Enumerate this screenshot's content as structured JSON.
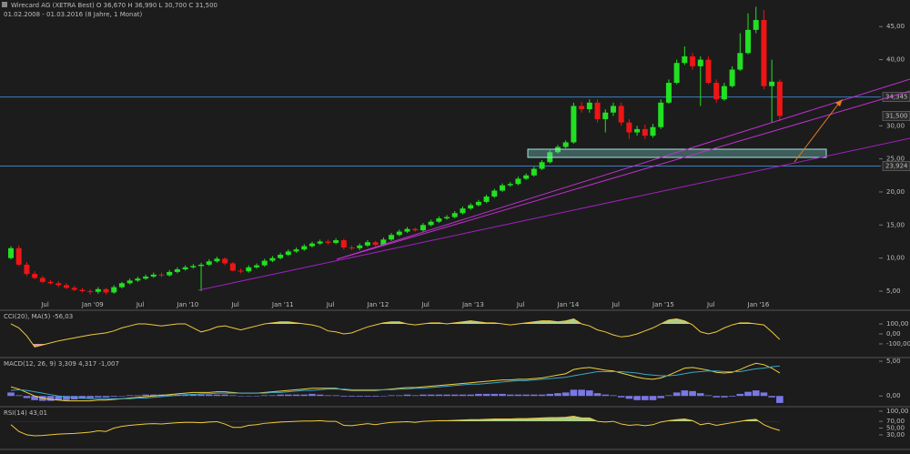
{
  "chart_data": {
    "type": "candlestick",
    "title": "Wirecard AG (XETRA Best) O 36,670 H 36,990 L 30,700 C 31,500",
    "subtitle": "01.02.2008 - 01.03.2016 (8 Jahre, 1 Monat)",
    "categories": [
      null,
      null,
      null,
      null,
      null,
      "Jul",
      null,
      null,
      null,
      null,
      null,
      "Jan '09",
      null,
      null,
      null,
      null,
      null,
      "Jul",
      null,
      null,
      null,
      null,
      null,
      "Jan '10",
      null,
      null,
      null,
      null,
      null,
      "Jul",
      null,
      null,
      null,
      null,
      null,
      "Jan '11",
      null,
      null,
      null,
      null,
      null,
      "Jul",
      null,
      null,
      null,
      null,
      null,
      "Jan '12",
      null,
      null,
      null,
      null,
      null,
      "Jul",
      null,
      null,
      null,
      null,
      null,
      "Jan '13",
      null,
      null,
      null,
      null,
      null,
      "Jul",
      null,
      null,
      null,
      null,
      null,
      "Jan '14",
      null,
      null,
      null,
      null,
      null,
      "Jul",
      null,
      null,
      null,
      null,
      null,
      "Jan '15",
      null,
      null,
      null,
      null,
      null,
      "Jul",
      null,
      null,
      null,
      null,
      null,
      "Jan '16",
      null,
      null
    ],
    "open": [
      10.0,
      11.5,
      9.0,
      7.6,
      7.0,
      6.4,
      6.2,
      5.9,
      5.5,
      5.2,
      5.0,
      4.9,
      5.3,
      4.8,
      5.6,
      6.2,
      6.6,
      6.9,
      7.2,
      7.5,
      7.4,
      7.9,
      8.3,
      8.6,
      8.8,
      9.0,
      9.5,
      9.9,
      9.2,
      8.1,
      8.0,
      8.6,
      8.9,
      9.6,
      10.0,
      10.5,
      11.0,
      11.3,
      11.8,
      12.2,
      12.5,
      12.3,
      12.7,
      11.6,
      11.5,
      11.9,
      12.4,
      12.0,
      12.8,
      13.5,
      14.0,
      14.4,
      14.2,
      15.0,
      15.5,
      16.0,
      16.2,
      16.8,
      17.5,
      18.0,
      18.5,
      19.3,
      20.2,
      21.0,
      21.2,
      22.0,
      22.5,
      23.5,
      24.5,
      26.0,
      26.8,
      27.5,
      33.0,
      32.5,
      33.5,
      31.0,
      32.0,
      33.0,
      30.5,
      29.0,
      29.5,
      28.5,
      29.8,
      33.5,
      36.5,
      39.5,
      40.5,
      39.0,
      40.0,
      36.5,
      34.0,
      36.0,
      38.5,
      41.0,
      44.5,
      46.0,
      36.0,
      36.67
    ],
    "high": [
      11.8,
      11.9,
      9.4,
      8.0,
      7.3,
      6.7,
      6.5,
      6.2,
      5.8,
      5.5,
      5.3,
      5.6,
      5.5,
      5.9,
      6.4,
      6.9,
      7.2,
      7.5,
      7.8,
      7.8,
      8.2,
      8.6,
      8.9,
      9.1,
      9.3,
      9.8,
      10.2,
      10.1,
      9.4,
      8.4,
      8.9,
      9.2,
      9.9,
      10.3,
      10.8,
      11.3,
      11.6,
      12.1,
      12.5,
      12.8,
      12.8,
      13.0,
      12.9,
      11.9,
      12.2,
      12.7,
      12.6,
      13.1,
      13.8,
      14.3,
      14.7,
      14.6,
      15.3,
      15.8,
      16.3,
      16.5,
      17.1,
      17.8,
      18.3,
      18.8,
      19.6,
      20.5,
      21.3,
      21.5,
      22.3,
      22.8,
      23.8,
      24.8,
      26.3,
      27.1,
      27.8,
      33.5,
      33.6,
      34.0,
      34.0,
      32.5,
      33.5,
      33.5,
      31.0,
      30.0,
      30.2,
      30.3,
      34.0,
      37.0,
      40.0,
      42.0,
      41.0,
      40.5,
      40.5,
      37.0,
      36.5,
      39.0,
      44.0,
      47.0,
      48.0,
      47.5,
      40.0,
      36.99
    ],
    "low": [
      9.8,
      8.8,
      7.3,
      6.8,
      6.2,
      6.0,
      5.6,
      5.3,
      5.0,
      4.8,
      4.5,
      4.6,
      4.5,
      4.6,
      5.4,
      6.0,
      6.4,
      6.7,
      7.0,
      7.1,
      7.2,
      7.7,
      8.1,
      8.4,
      5.0,
      8.8,
      9.3,
      8.9,
      8.0,
      7.7,
      7.8,
      8.4,
      8.7,
      9.4,
      9.8,
      10.3,
      10.8,
      11.1,
      11.6,
      12.0,
      12.0,
      12.1,
      11.3,
      11.2,
      11.2,
      11.7,
      11.8,
      11.8,
      12.6,
      13.3,
      13.8,
      14.0,
      14.0,
      14.8,
      15.3,
      15.8,
      16.0,
      16.6,
      17.3,
      17.8,
      18.3,
      19.1,
      20.0,
      20.8,
      21.0,
      21.8,
      22.3,
      23.3,
      24.3,
      25.8,
      26.6,
      27.3,
      32.0,
      32.0,
      30.5,
      29.0,
      31.5,
      30.0,
      28.0,
      28.5,
      28.0,
      28.2,
      29.5,
      33.3,
      36.3,
      39.2,
      38.5,
      33.0,
      36.3,
      33.5,
      33.8,
      35.8,
      38.3,
      40.8,
      44.0,
      35.5,
      30.5,
      30.7
    ],
    "close": [
      11.5,
      9.0,
      7.6,
      7.0,
      6.4,
      6.2,
      5.9,
      5.5,
      5.2,
      5.0,
      4.9,
      5.3,
      4.8,
      5.6,
      6.2,
      6.6,
      6.9,
      7.2,
      7.5,
      7.4,
      7.9,
      8.3,
      8.6,
      8.8,
      9.0,
      9.5,
      9.9,
      9.2,
      8.1,
      8.0,
      8.6,
      8.9,
      9.6,
      10.0,
      10.5,
      11.0,
      11.3,
      11.8,
      12.2,
      12.5,
      12.3,
      12.7,
      11.6,
      11.5,
      11.9,
      12.4,
      12.0,
      12.8,
      13.5,
      14.0,
      14.4,
      14.2,
      15.0,
      15.5,
      16.0,
      16.2,
      16.8,
      17.5,
      18.0,
      18.5,
      19.3,
      20.2,
      21.0,
      21.2,
      22.0,
      22.5,
      23.5,
      24.5,
      26.0,
      26.8,
      27.5,
      33.0,
      32.5,
      33.5,
      31.0,
      32.0,
      33.0,
      30.5,
      29.0,
      29.5,
      28.5,
      29.8,
      33.5,
      36.5,
      39.5,
      40.5,
      39.0,
      40.0,
      36.5,
      34.0,
      36.0,
      38.5,
      41.0,
      44.5,
      46.0,
      36.0,
      36.67,
      31.5
    ],
    "up_color": "#22e022",
    "down_color": "#ee1515",
    "ylim": [
      2.25,
      49.02
    ],
    "yticks": [
      {
        "value": 5,
        "label": "5,00"
      },
      {
        "value": 10,
        "label": "10,00"
      },
      {
        "value": 15,
        "label": "15,00"
      },
      {
        "value": 20,
        "label": "20,00"
      },
      {
        "value": 25,
        "label": "25,00"
      },
      {
        "value": 30,
        "label": "30,00"
      },
      {
        "value": 40,
        "label": "40,00"
      },
      {
        "value": 45,
        "label": "45,00"
      }
    ],
    "hlines": [
      {
        "value": 34.345,
        "label": "34,345",
        "color": "#3a7fc0"
      },
      {
        "value": 23.924,
        "label": "23,924",
        "color": "#3a7fc0"
      }
    ],
    "last_price": {
      "value": 31.5,
      "label": "31,500"
    },
    "indicators": [
      {
        "type": "line",
        "title": "CCI(20), MA(5) -56,03",
        "ylim": [
          -209,
          218
        ],
        "yticks": [
          {
            "value": 100,
            "label": "100,00"
          },
          {
            "value": 0,
            "label": "0,00"
          },
          {
            "value": -100,
            "label": "-100,00"
          }
        ],
        "fills": [
          {
            "tick": 0,
            "side": "above",
            "color": "#c8ef9c"
          },
          {
            "tick": 2,
            "side": "below",
            "color": "#f2b4b4"
          }
        ],
        "series": [
          {
            "color": "#f0c83c",
            "values": [
              100,
              60,
              -20,
              -130,
              -110,
              -90,
              -70,
              -55,
              -40,
              -25,
              -10,
              0,
              10,
              30,
              60,
              80,
              100,
              100,
              90,
              80,
              90,
              100,
              100,
              60,
              20,
              40,
              70,
              80,
              60,
              40,
              60,
              80,
              100,
              110,
              120,
              120,
              110,
              100,
              90,
              70,
              30,
              20,
              0,
              10,
              40,
              70,
              90,
              110,
              120,
              120,
              100,
              90,
              100,
              110,
              110,
              100,
              110,
              120,
              130,
              120,
              110,
              110,
              100,
              90,
              100,
              110,
              120,
              130,
              130,
              120,
              130,
              150,
              100,
              80,
              40,
              20,
              -10,
              -30,
              -20,
              0,
              30,
              60,
              100,
              140,
              150,
              130,
              90,
              20,
              0,
              20,
              60,
              90,
              110,
              110,
              100,
              90,
              20,
              -56.03
            ]
          }
        ]
      },
      {
        "type": "macd",
        "title": "MACD(12, 26, 9) 3,309 4,317 -1,007",
        "ylim": [
          -1.41,
          5.26
        ],
        "yticks": [
          {
            "value": 5,
            "label": "5,00"
          },
          {
            "value": 0,
            "label": "0,00"
          }
        ],
        "histogram": {
          "color": "#7a78e6",
          "values": [
            0.5,
            0.1,
            -0.3,
            -0.6,
            -0.7,
            -0.7,
            -0.6,
            -0.6,
            -0.5,
            -0.4,
            -0.3,
            -0.2,
            -0.2,
            -0.1,
            0.0,
            0.1,
            0.1,
            0.2,
            0.2,
            0.2,
            0.2,
            0.2,
            0.2,
            0.3,
            0.2,
            0.2,
            0.2,
            0.2,
            0.1,
            0.0,
            0.0,
            0.0,
            0.1,
            0.1,
            0.2,
            0.2,
            0.2,
            0.2,
            0.3,
            0.2,
            0.1,
            0.1,
            -0.1,
            -0.1,
            -0.1,
            -0.1,
            -0.1,
            0.0,
            0.1,
            0.1,
            0.2,
            0.1,
            0.2,
            0.2,
            0.2,
            0.2,
            0.2,
            0.2,
            0.2,
            0.3,
            0.3,
            0.3,
            0.3,
            0.2,
            0.2,
            0.2,
            0.2,
            0.2,
            0.3,
            0.4,
            0.5,
            0.9,
            0.9,
            0.8,
            0.4,
            0.2,
            0.1,
            -0.2,
            -0.4,
            -0.6,
            -0.6,
            -0.6,
            -0.3,
            0.1,
            0.5,
            0.8,
            0.7,
            0.4,
            0.1,
            -0.2,
            -0.2,
            -0.1,
            0.3,
            0.6,
            0.8,
            0.5,
            -0.2,
            -1.007
          ]
        },
        "series": [
          {
            "color": "#f0d040",
            "values": [
              1.3,
              1.0,
              0.5,
              0.0,
              -0.3,
              -0.5,
              -0.6,
              -0.7,
              -0.7,
              -0.7,
              -0.7,
              -0.6,
              -0.6,
              -0.5,
              -0.4,
              -0.3,
              -0.2,
              -0.1,
              0.0,
              0.1,
              0.2,
              0.3,
              0.4,
              0.5,
              0.5,
              0.5,
              0.6,
              0.6,
              0.5,
              0.4,
              0.4,
              0.4,
              0.5,
              0.6,
              0.7,
              0.8,
              0.9,
              1.0,
              1.1,
              1.1,
              1.1,
              1.1,
              0.9,
              0.8,
              0.8,
              0.8,
              0.8,
              0.9,
              1.0,
              1.1,
              1.2,
              1.2,
              1.3,
              1.4,
              1.5,
              1.6,
              1.7,
              1.8,
              1.9,
              2.0,
              2.1,
              2.2,
              2.3,
              2.3,
              2.4,
              2.4,
              2.5,
              2.6,
              2.8,
              3.0,
              3.2,
              3.8,
              4.0,
              4.1,
              3.9,
              3.7,
              3.6,
              3.3,
              3.0,
              2.7,
              2.5,
              2.4,
              2.6,
              3.0,
              3.5,
              4.0,
              4.1,
              3.9,
              3.7,
              3.4,
              3.3,
              3.4,
              3.8,
              4.3,
              4.7,
              4.5,
              4.0,
              3.309
            ]
          },
          {
            "color": "#3aa6c8",
            "values": [
              0.8,
              0.9,
              0.8,
              0.6,
              0.4,
              0.2,
              0.0,
              -0.1,
              -0.2,
              -0.3,
              -0.4,
              -0.4,
              -0.4,
              -0.4,
              -0.4,
              -0.4,
              -0.3,
              -0.3,
              -0.2,
              -0.1,
              0.0,
              0.1,
              0.2,
              0.2,
              0.3,
              0.3,
              0.4,
              0.4,
              0.4,
              0.4,
              0.4,
              0.4,
              0.4,
              0.5,
              0.5,
              0.6,
              0.7,
              0.8,
              0.8,
              0.9,
              1.0,
              1.0,
              1.0,
              0.9,
              0.9,
              0.9,
              0.9,
              0.9,
              0.9,
              1.0,
              1.0,
              1.1,
              1.1,
              1.2,
              1.3,
              1.4,
              1.5,
              1.6,
              1.7,
              1.7,
              1.8,
              1.9,
              2.0,
              2.1,
              2.2,
              2.2,
              2.3,
              2.4,
              2.5,
              2.6,
              2.7,
              2.9,
              3.1,
              3.3,
              3.5,
              3.5,
              3.5,
              3.5,
              3.4,
              3.3,
              3.1,
              3.0,
              2.9,
              2.9,
              3.0,
              3.2,
              3.4,
              3.5,
              3.6,
              3.6,
              3.5,
              3.5,
              3.5,
              3.7,
              3.9,
              4.0,
              4.2,
              4.317
            ]
          }
        ]
      },
      {
        "type": "line",
        "title": "RSI(14) 43,01",
        "ylim": [
          -8,
          108
        ],
        "yticks": [
          {
            "value": 100,
            "label": "100,00"
          },
          {
            "value": 70,
            "label": "70,00"
          },
          {
            "value": 50,
            "label": "50,00"
          },
          {
            "value": 30,
            "label": "30,00"
          }
        ],
        "fills": [
          {
            "tick": 1,
            "side": "above",
            "color": "#c8ef9c"
          }
        ],
        "series": [
          {
            "color": "#f0c83c",
            "values": [
              60,
              40,
              30,
              27,
              28,
              30,
              32,
              33,
              34,
              36,
              38,
              42,
              40,
              50,
              55,
              58,
              60,
              62,
              63,
              62,
              64,
              66,
              67,
              67,
              66,
              68,
              69,
              62,
              52,
              52,
              58,
              60,
              64,
              66,
              68,
              69,
              70,
              71,
              71,
              72,
              70,
              70,
              58,
              57,
              60,
              63,
              60,
              64,
              67,
              68,
              69,
              67,
              70,
              71,
              72,
              72,
              73,
              74,
              75,
              75,
              76,
              77,
              77,
              77,
              78,
              78,
              79,
              80,
              81,
              81,
              82,
              85,
              80,
              80,
              70,
              68,
              70,
              62,
              58,
              60,
              57,
              60,
              68,
              72,
              75,
              77,
              72,
              60,
              64,
              58,
              62,
              66,
              70,
              74,
              76,
              60,
              50,
              43.01
            ]
          }
        ]
      }
    ]
  }
}
